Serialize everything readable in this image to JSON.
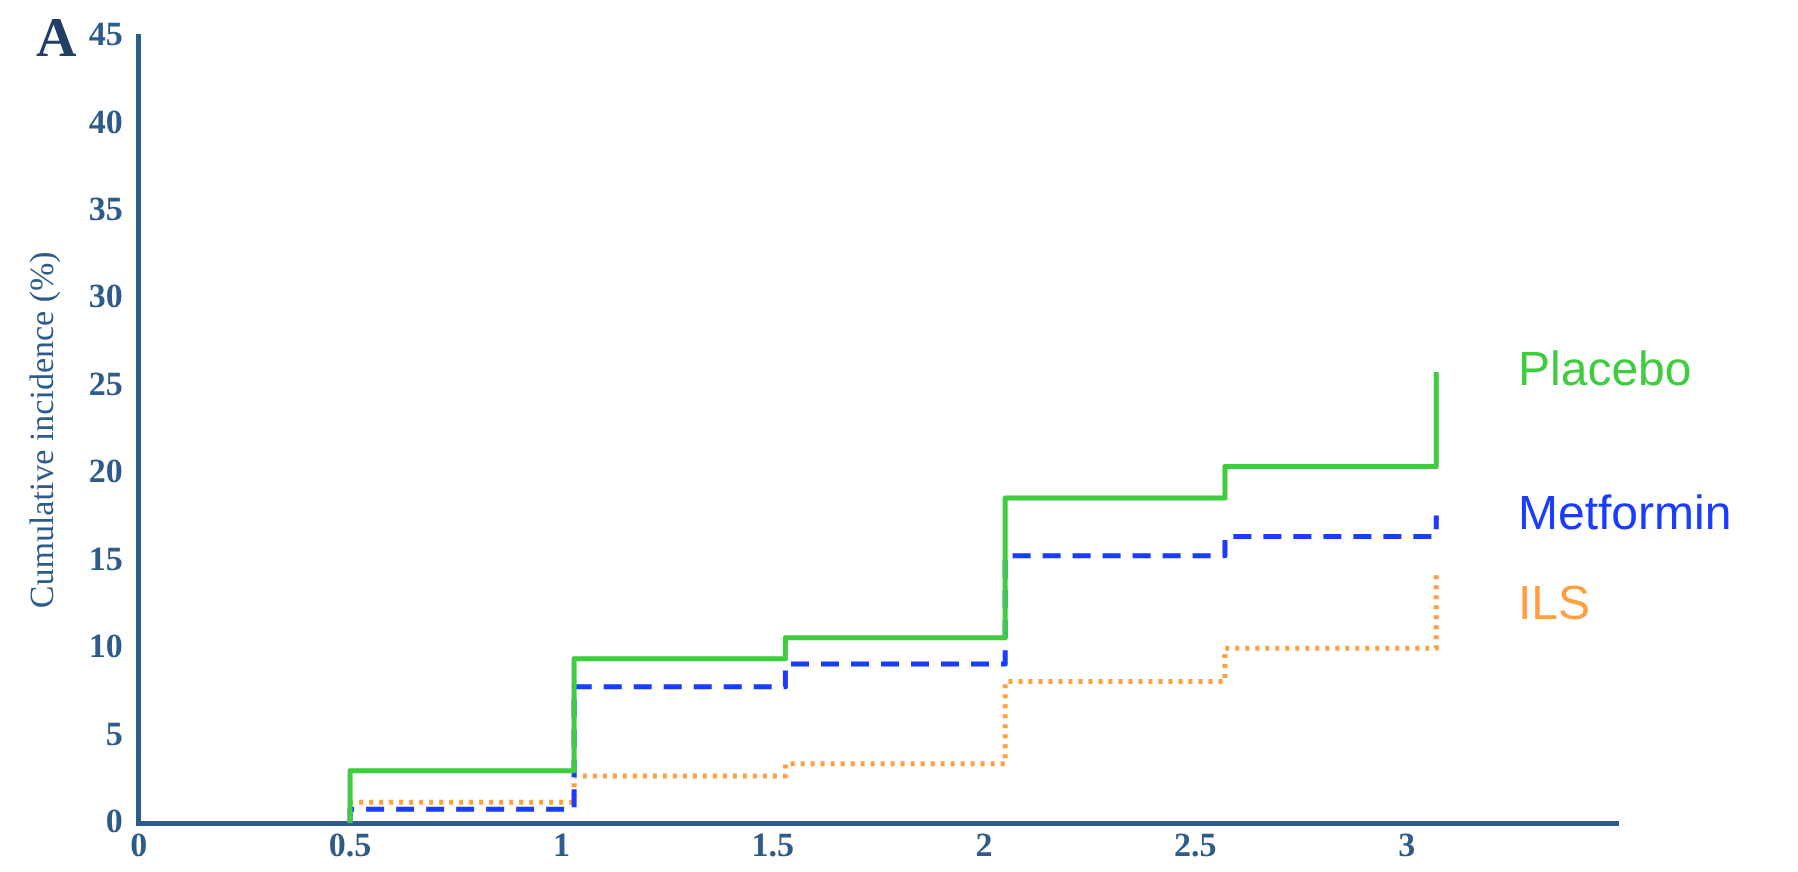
{
  "chart_data": {
    "type": "step",
    "ylabel": "Cumulative incidence (%)",
    "annotations": [
      "A"
    ],
    "xlim": [
      0,
      3.5
    ],
    "xticks": [
      0,
      0.5,
      1,
      1.5,
      2,
      2.5,
      3
    ],
    "ylim": [
      0,
      45
    ],
    "yticks": [
      0,
      5,
      10,
      15,
      20,
      25,
      30,
      35,
      40,
      45
    ],
    "grid": false,
    "marker": "none",
    "series": [
      {
        "name": "Placebo",
        "color": "#3fcc3f",
        "line_style": "solid",
        "x": [
          0.5,
          0.5,
          1.03,
          1.53,
          2.05,
          2.57,
          3.07,
          3.07
        ],
        "values": [
          0,
          3.0,
          9.4,
          10.6,
          18.6,
          20.4,
          20.4,
          25.8
        ]
      },
      {
        "name": "Metformin",
        "color": "#1a3cff",
        "line_style": "dashed",
        "x": [
          0.5,
          0.5,
          1.03,
          1.53,
          2.05,
          2.57,
          3.07,
          3.07
        ],
        "values": [
          0,
          0.8,
          7.8,
          9.1,
          15.3,
          16.4,
          16.4,
          17.6
        ]
      },
      {
        "name": "ILS",
        "color": "#ffa040",
        "line_style": "dotted",
        "x": [
          0.5,
          0.5,
          1.03,
          1.53,
          2.05,
          2.57,
          3.07,
          3.07
        ],
        "values": [
          0,
          1.2,
          2.7,
          3.4,
          8.1,
          10.0,
          10.0,
          14.5
        ]
      }
    ]
  }
}
